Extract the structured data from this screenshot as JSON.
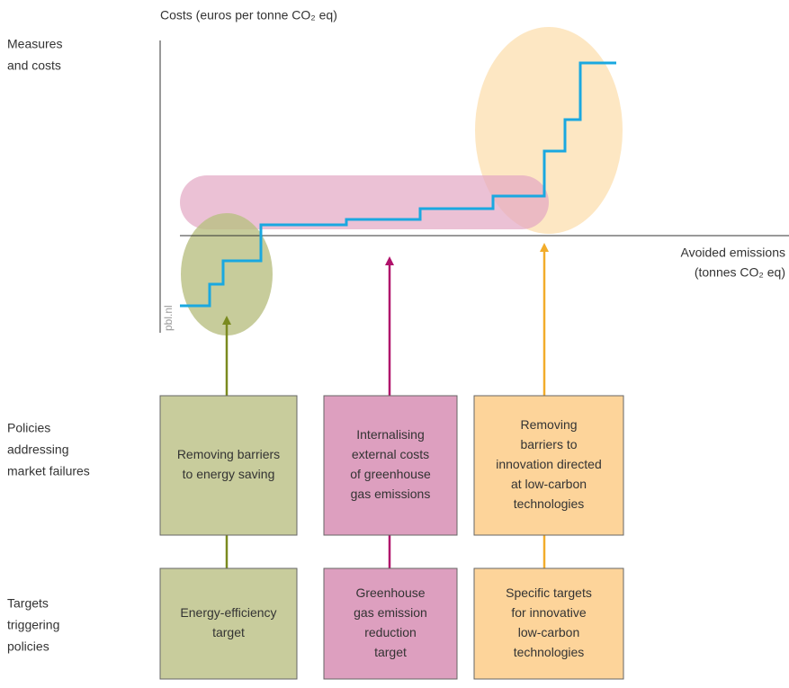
{
  "axis_labels": {
    "y": [
      "Costs (euros per tonne CO₂ eq)"
    ],
    "x": [
      "Avoided emissions",
      "(tonnes CO₂ eq)"
    ]
  },
  "source": "pbl.nl",
  "row_labels": [
    [
      "Measures",
      "and costs"
    ],
    [
      "Policies",
      "addressing",
      "market failures"
    ],
    [
      "Targets",
      "triggering",
      "policies"
    ]
  ],
  "policies": [
    [
      "Removing barriers",
      "to energy saving"
    ],
    [
      "Internalising",
      "external costs",
      "of greenhouse",
      "gas emissions"
    ],
    [
      "Removing",
      "barriers to",
      "innovation directed",
      "at low-carbon",
      "technologies"
    ]
  ],
  "targets": [
    [
      "Energy-efficiency",
      "target"
    ],
    [
      "Greenhouse",
      "gas emission",
      "reduction",
      "target"
    ],
    [
      "Specific targets",
      "for innovative",
      "low-carbon",
      "technologies"
    ]
  ]
}
